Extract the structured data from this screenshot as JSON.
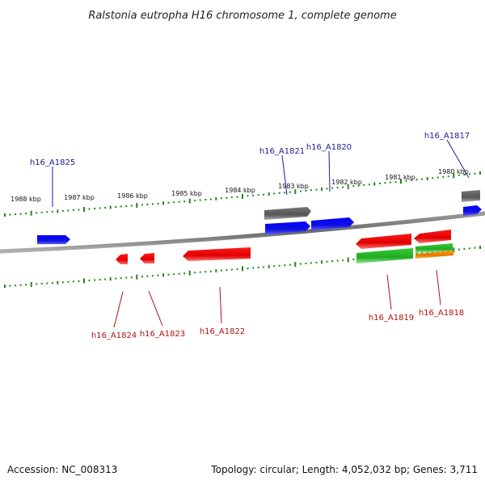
{
  "title": "Ralstonia eutropha H16 chromosome 1, complete genome",
  "accession": "Accession: NC_008313",
  "topology": "Topology: circular; Length: 4,052,032 bp; Genes: 3,711",
  "colors": {
    "forward_cds": "#1010ee",
    "reverse_cds": "#ee1111",
    "pseudo": "#606060",
    "green_feature": "#22bb22",
    "orange_feature": "#ee8800",
    "backbone": "#888888",
    "tick": "#1a8a1a",
    "forward_label": "#1a1a9a",
    "reverse_label": "#b01010"
  },
  "scale_labels": [
    "1988 kbp",
    "1987 kbp",
    "1986 kbp",
    "1985 kbp",
    "1984 kbp",
    "1983 kbp",
    "1982 kbp",
    "1981 kbp",
    "1980 kbp"
  ],
  "genes": {
    "forward": [
      "h16_A1825",
      "h16_A1821",
      "h16_A1820",
      "h16_A1817"
    ],
    "reverse": [
      "h16_A1824",
      "h16_A1823",
      "h16_A1822",
      "h16_A1819",
      "h16_A1818"
    ]
  }
}
